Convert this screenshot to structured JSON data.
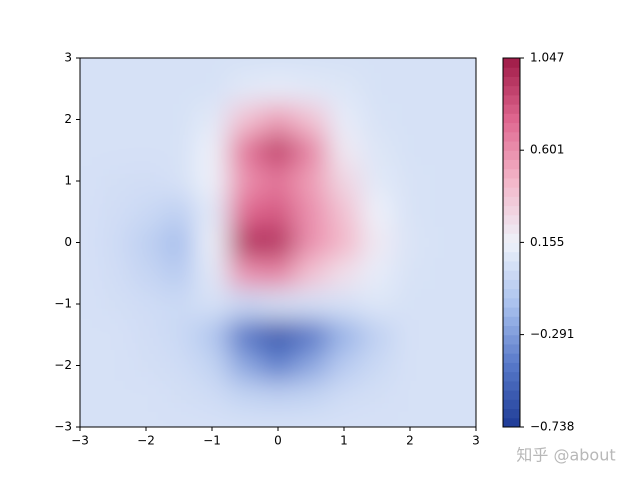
{
  "chart_data": {
    "type": "contourf",
    "x": [
      -3,
      -2.5,
      -2,
      -1.5,
      -1,
      -0.5,
      0,
      0.5,
      1,
      1.5,
      2,
      2.5,
      3
    ],
    "y": [
      3,
      2.5,
      2,
      1.5,
      1,
      0.5,
      0,
      -0.5,
      -1,
      -1.5,
      -2,
      -2.5,
      -3
    ],
    "z": [
      [
        0.05,
        0.05,
        0.05,
        0.05,
        0.05,
        0.05,
        0.05,
        0.05,
        0.05,
        0.05,
        0.05,
        0.05,
        0.05
      ],
      [
        0.05,
        0.05,
        0.05,
        0.05,
        0.05,
        0.1,
        0.12,
        0.1,
        0.08,
        0.05,
        0.05,
        0.05,
        0.05
      ],
      [
        0.05,
        0.05,
        0.05,
        0.05,
        0.1,
        0.4,
        0.55,
        0.4,
        0.12,
        0.06,
        0.05,
        0.05,
        0.05
      ],
      [
        0.05,
        0.05,
        0.05,
        0.05,
        0.15,
        0.7,
        0.9,
        0.65,
        0.2,
        0.08,
        0.05,
        0.05,
        0.05
      ],
      [
        0.05,
        0.04,
        0.03,
        0.05,
        0.15,
        0.6,
        0.7,
        0.55,
        0.3,
        0.1,
        0.06,
        0.05,
        0.05
      ],
      [
        0.05,
        0.03,
        0.0,
        -0.05,
        0.1,
        0.75,
        0.8,
        0.6,
        0.4,
        0.15,
        0.06,
        0.05,
        0.05
      ],
      [
        0.05,
        0.02,
        -0.05,
        -0.15,
        0.15,
        0.95,
        0.95,
        0.6,
        0.45,
        0.2,
        0.07,
        0.05,
        0.05
      ],
      [
        0.05,
        0.03,
        -0.02,
        -0.08,
        0.1,
        0.6,
        0.65,
        0.4,
        0.25,
        0.12,
        0.06,
        0.05,
        0.05
      ],
      [
        0.05,
        0.04,
        0.02,
        0.0,
        0.05,
        0.0,
        0.05,
        0.05,
        0.05,
        0.08,
        0.05,
        0.05,
        0.05
      ],
      [
        0.05,
        0.05,
        0.03,
        0.0,
        -0.1,
        -0.45,
        -0.6,
        -0.45,
        -0.2,
        -0.05,
        0.05,
        0.05,
        0.05
      ],
      [
        0.05,
        0.05,
        0.04,
        0.02,
        -0.03,
        -0.25,
        -0.4,
        -0.25,
        -0.08,
        0.0,
        0.05,
        0.05,
        0.05
      ],
      [
        0.05,
        0.05,
        0.05,
        0.04,
        0.02,
        -0.03,
        -0.05,
        -0.03,
        0.02,
        0.04,
        0.05,
        0.05,
        0.05
      ],
      [
        0.05,
        0.05,
        0.05,
        0.05,
        0.05,
        0.05,
        0.05,
        0.05,
        0.05,
        0.05,
        0.05,
        0.05,
        0.05
      ]
    ],
    "xlim": [
      -3,
      3
    ],
    "ylim": [
      -3,
      3
    ],
    "xticks": [
      {
        "value": -3,
        "label": "−3"
      },
      {
        "value": -2,
        "label": "−2"
      },
      {
        "value": -1,
        "label": "−1"
      },
      0,
      1,
      2,
      3
    ],
    "yticks": [
      {
        "value": -3,
        "label": "−3"
      },
      {
        "value": -2,
        "label": "−2"
      },
      {
        "value": -1,
        "label": "−1"
      },
      0,
      1,
      2,
      3
    ],
    "clim": [
      -0.738,
      1.047
    ],
    "cticks": [
      {
        "value": -0.738,
        "label": "−0.738"
      },
      {
        "value": -0.291,
        "label": "−0.291"
      },
      0.155,
      0.601,
      1.047
    ],
    "colormap": [
      "#1e3b96",
      "#5677c8",
      "#a9c1ee",
      "#eef2fa",
      "#f3b7c9",
      "#e06790",
      "#9e1a46"
    ],
    "watermark": "知乎 @about"
  }
}
